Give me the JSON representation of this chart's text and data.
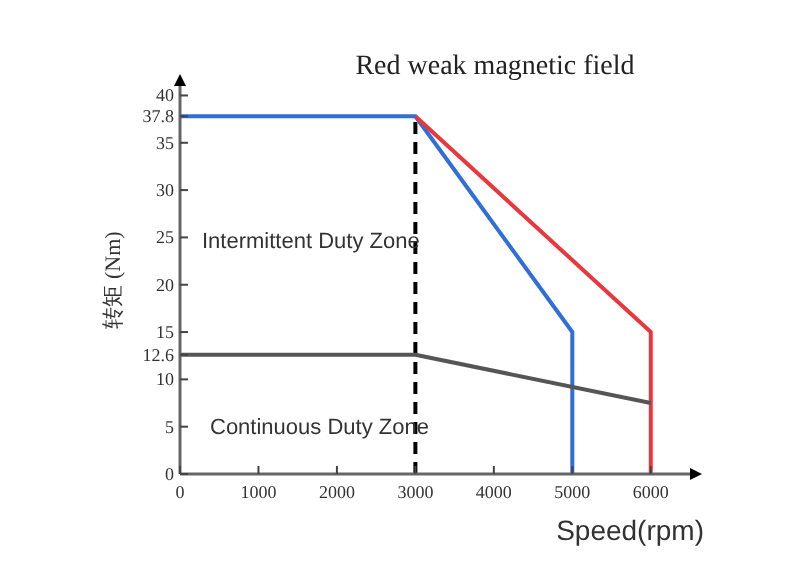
{
  "chart_data": {
    "type": "line",
    "title": "Red weak magnetic field",
    "xlabel": "Speed(rpm)",
    "ylabel": "转矩 (Nm)",
    "series": [
      {
        "color": "#2f6fd6",
        "x": [
          0,
          3000,
          5000,
          5000
        ],
        "values": [
          37.8,
          37.8,
          15,
          0
        ]
      },
      {
        "color": "#e8383d",
        "x": [
          3000,
          6000,
          6000
        ],
        "values": [
          37.8,
          15,
          0
        ]
      },
      {
        "color": "#555555",
        "x": [
          0,
          3000,
          6000
        ],
        "values": [
          12.6,
          12.6,
          7.5
        ]
      }
    ],
    "xlim": [
      0,
      6500
    ],
    "ylim": [
      0,
      41
    ],
    "xticks": [
      0,
      1000,
      2000,
      3000,
      4000,
      5000,
      6000
    ],
    "yticks": [
      0,
      5,
      10,
      12.6,
      15,
      20,
      25,
      30,
      35,
      37.8,
      40
    ],
    "ref_lines": [
      {
        "axis": "x",
        "value": 3000,
        "color": "#000000",
        "line_style": "dashed"
      }
    ],
    "annotations": [
      "Intermittent Duty Zone",
      "Continuous Duty Zone"
    ],
    "grid": false,
    "marker": "none",
    "line_style": "solid"
  }
}
